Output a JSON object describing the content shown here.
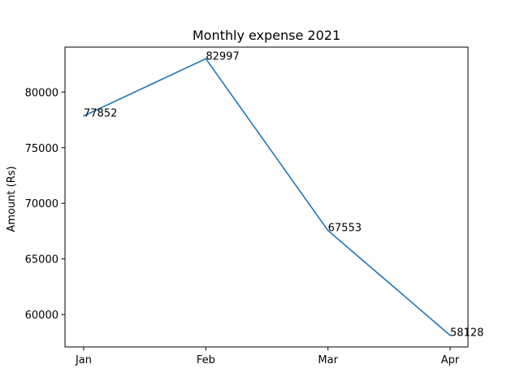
{
  "chart_data": {
    "type": "line",
    "title": "Monthly expense 2021",
    "xlabel": "",
    "ylabel": "Amount (Rs)",
    "categories": [
      "Jan",
      "Feb",
      "Mar",
      "Apr"
    ],
    "series": [
      {
        "values": [
          77852,
          82997,
          67553,
          58128
        ]
      }
    ],
    "data_labels": [
      "77852",
      "82997",
      "67553",
      "58128"
    ],
    "yticks": [
      60000,
      65000,
      70000,
      75000,
      80000
    ],
    "ytick_labels": [
      "60000",
      "65000",
      "70000",
      "75000",
      "80000"
    ],
    "ylim": [
      57085.55,
      84040.45
    ],
    "grid": false,
    "line_color": "#1f77b4"
  }
}
